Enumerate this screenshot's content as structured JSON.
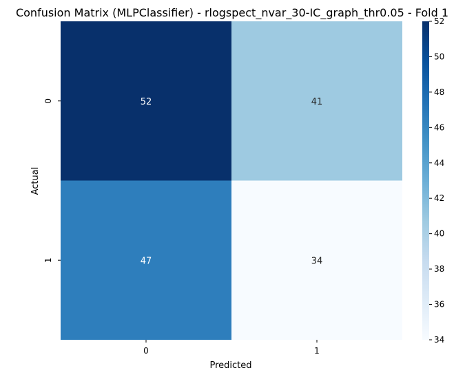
{
  "chart_data": {
    "type": "heatmap",
    "title": "Confusion Matrix (MLPClassifier) - rlogspect_nvar_30-IC_graph_thr0.05 - Fold 1",
    "xlabel": "Predicted",
    "ylabel": "Actual",
    "x_categories": [
      "0",
      "1"
    ],
    "y_categories": [
      "0",
      "1"
    ],
    "values": [
      [
        52,
        41
      ],
      [
        47,
        34
      ]
    ],
    "colormap": "Blues",
    "colorbar": {
      "min": 34,
      "max": 52,
      "ticks": [
        "34",
        "36",
        "38",
        "40",
        "42",
        "44",
        "46",
        "48",
        "50",
        "52"
      ]
    },
    "cell_colors": [
      [
        "#08306b",
        "#9ecae1"
      ],
      [
        "#2e7ebc",
        "#f7fbff"
      ]
    ],
    "annotation_colors": [
      [
        "#ffffff",
        "#262626"
      ],
      [
        "#ffffff",
        "#262626"
      ]
    ]
  }
}
